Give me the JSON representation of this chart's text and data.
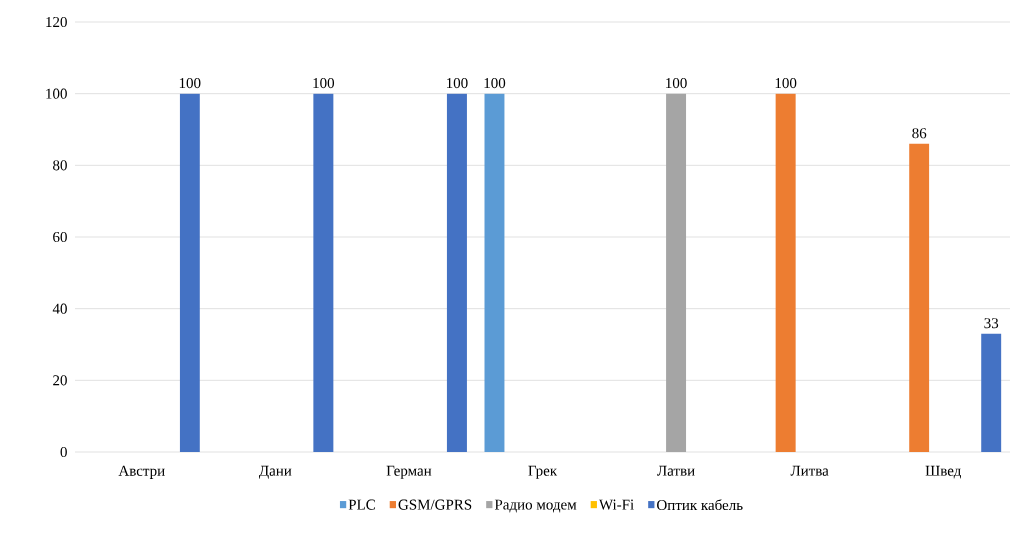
{
  "chart_data": {
    "type": "bar",
    "categories": [
      "Австри",
      "Дани",
      "Герман",
      "Грек",
      "Латви",
      "Литва",
      "Швед"
    ],
    "series": [
      {
        "name": "PLC",
        "color": "#5b9bd5",
        "values": [
          null,
          null,
          null,
          100,
          null,
          null,
          null
        ],
        "value_labels": [
          null,
          null,
          null,
          "100",
          null,
          null,
          null
        ]
      },
      {
        "name": "GSM/GPRS",
        "color": "#ed7d31",
        "values": [
          null,
          null,
          null,
          null,
          null,
          100,
          86
        ],
        "value_labels": [
          null,
          null,
          null,
          null,
          null,
          "100",
          "86"
        ]
      },
      {
        "name": "Радио модем",
        "color": "#a5a5a5",
        "values": [
          null,
          null,
          null,
          null,
          100,
          null,
          null
        ],
        "value_labels": [
          null,
          null,
          null,
          null,
          "100",
          null,
          null
        ]
      },
      {
        "name": "Wi-Fi",
        "color": "#ffc000",
        "values": [
          null,
          null,
          null,
          null,
          null,
          null,
          null
        ],
        "value_labels": [
          null,
          null,
          null,
          null,
          null,
          null,
          null
        ]
      },
      {
        "name": "Оптик кабель",
        "color": "#4472c4",
        "values": [
          100,
          100,
          100,
          null,
          null,
          null,
          33
        ],
        "value_labels": [
          "100",
          "100",
          "100",
          null,
          null,
          null,
          "33"
        ]
      }
    ],
    "ylim": [
      0,
      120
    ],
    "yticks": [
      0,
      20,
      40,
      60,
      80,
      100,
      120
    ],
    "grid": "y",
    "legend": "bottom"
  }
}
